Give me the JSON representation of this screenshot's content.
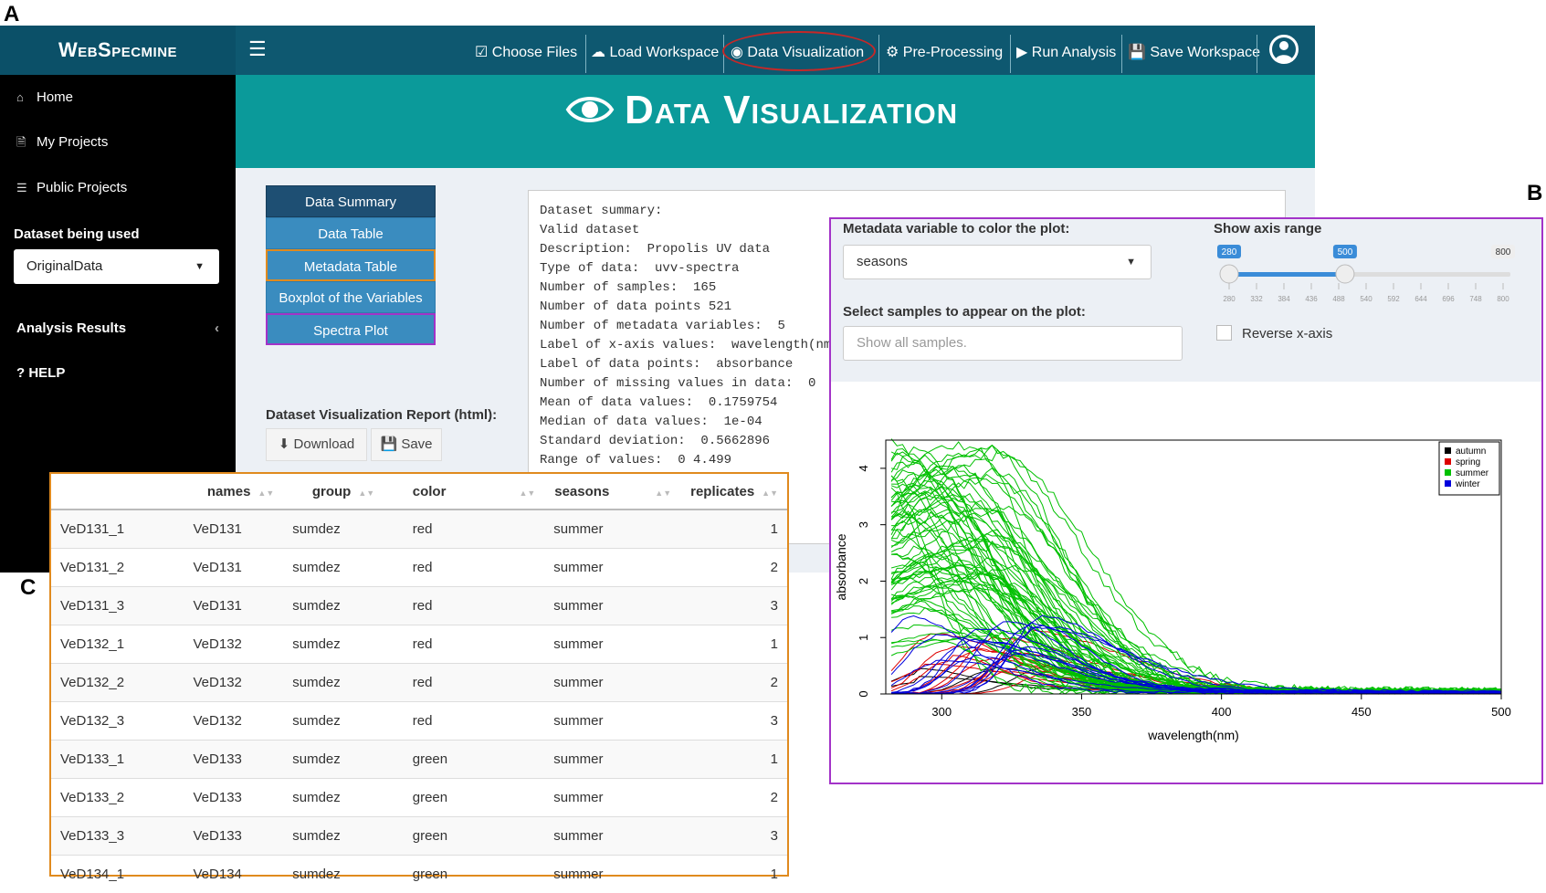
{
  "panel_letters": {
    "a": "A",
    "b": "B",
    "c": "C"
  },
  "navbar": {
    "logo": "WebSpecmine",
    "items": [
      {
        "icon": "check-square-icon",
        "label": "Choose Files"
      },
      {
        "icon": "cloud-upload-icon",
        "label": "Load Workspace"
      },
      {
        "icon": "eye-icon",
        "label": "Data Visualization"
      },
      {
        "icon": "gears-icon",
        "label": "Pre-Processing"
      },
      {
        "icon": "play-icon",
        "label": "Run Analysis"
      },
      {
        "icon": "floppy-disk-icon",
        "label": "Save Workspace"
      }
    ]
  },
  "sidebar": {
    "items": [
      {
        "icon": "home-icon",
        "label": "Home"
      },
      {
        "icon": "file-icon",
        "label": "My Projects"
      },
      {
        "icon": "database-icon",
        "label": "Public Projects"
      }
    ],
    "dataset_label": "Dataset being used",
    "dataset_value": "OriginalData",
    "analysis_results": "Analysis Results",
    "help": "? HELP"
  },
  "header": {
    "title": "Data Visualization"
  },
  "tabs": [
    "Data Summary",
    "Data Table",
    "Metadata Table",
    "Boxplot of the Variables",
    "Spectra Plot"
  ],
  "report": {
    "label": "Dataset Visualization Report (html):",
    "download": "Download",
    "save": "Save"
  },
  "summary_lines": [
    "Dataset summary:",
    "Valid dataset",
    "Description:  Propolis UV data",
    "Type of data:  uvv-spectra",
    "Number of samples:  165",
    "Number of data points 521",
    "Number of metadata variables:  5",
    "Label of x-axis values:  wavelength(nm)",
    "Label of data points:  absorbance",
    "Number of missing values in data:  0",
    "Mean of data values:  0.1759754",
    "Median of data values:  1e-04",
    "Standard deviation:  0.5662896",
    "Range of values:  0 4.499"
  ],
  "panelB": {
    "color_label": "Metadata variable to color the plot:",
    "color_value": "seasons",
    "samples_label": "Select samples to appear on the plot:",
    "samples_placeholder": "Show all samples.",
    "range_label": "Show axis range",
    "range_from": "280",
    "range_to": "500",
    "range_max": "800",
    "slider_ticks": [
      "280",
      "332",
      "384",
      "436",
      "488",
      "540",
      "592",
      "644",
      "696",
      "748",
      "800"
    ],
    "reverse_label": "Reverse x-axis",
    "reverse_checked": false
  },
  "chart_data": {
    "type": "line",
    "xlabel": "wavelength(nm)",
    "ylabel": "absorbance",
    "xlim": [
      280,
      500
    ],
    "ylim": [
      0,
      4.5
    ],
    "xticks": [
      300,
      350,
      400,
      450,
      500
    ],
    "yticks": [
      0,
      1,
      2,
      3,
      4
    ],
    "legend_position": "top-right",
    "series": [
      {
        "name": "autumn",
        "color": "#000000",
        "peak_x": 315,
        "peak_y": 0.6,
        "count": 4
      },
      {
        "name": "spring",
        "color": "#dd0000",
        "peak_x": 318,
        "peak_y": 1.05,
        "count": 12
      },
      {
        "name": "summer",
        "color": "#00c000",
        "peak_x": 300,
        "peak_y": 4.4,
        "count": 70
      },
      {
        "name": "winter",
        "color": "#0000dd",
        "peak_x": 312,
        "peak_y": 1.35,
        "count": 14
      }
    ]
  },
  "table": {
    "headers": [
      "",
      "names",
      "group",
      "color",
      "seasons",
      "replicates"
    ],
    "rows": [
      [
        "VeD131_1",
        "VeD131",
        "sumdez",
        "red",
        "summer",
        "1"
      ],
      [
        "VeD131_2",
        "VeD131",
        "sumdez",
        "red",
        "summer",
        "2"
      ],
      [
        "VeD131_3",
        "VeD131",
        "sumdez",
        "red",
        "summer",
        "3"
      ],
      [
        "VeD132_1",
        "VeD132",
        "sumdez",
        "red",
        "summer",
        "1"
      ],
      [
        "VeD132_2",
        "VeD132",
        "sumdez",
        "red",
        "summer",
        "2"
      ],
      [
        "VeD132_3",
        "VeD132",
        "sumdez",
        "red",
        "summer",
        "3"
      ],
      [
        "VeD133_1",
        "VeD133",
        "sumdez",
        "green",
        "summer",
        "1"
      ],
      [
        "VeD133_2",
        "VeD133",
        "sumdez",
        "green",
        "summer",
        "2"
      ],
      [
        "VeD133_3",
        "VeD133",
        "sumdez",
        "green",
        "summer",
        "3"
      ],
      [
        "VeD134_1",
        "VeD134",
        "sumdez",
        "green",
        "summer",
        "1"
      ]
    ]
  }
}
